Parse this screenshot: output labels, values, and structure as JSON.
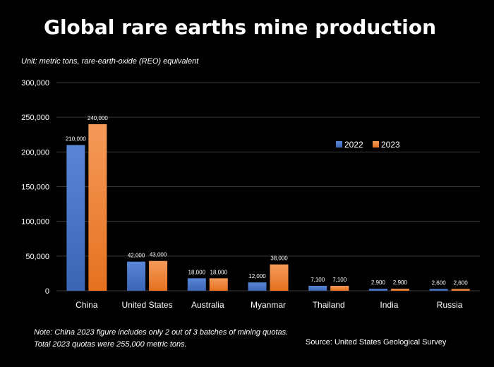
{
  "header": {
    "title": "Global rare earths mine production",
    "subtitle": "Unit: metric tons, rare-earth-oxide (REO) equivalent"
  },
  "footer": {
    "note": "Note: China 2023 figure includes only 2 out of 3 batches of mining quotas. Total 2023 quotas were 255,000 metric tons.",
    "source": "Source: United States Geological Survey"
  },
  "colors": {
    "2022": "#4472C4",
    "2023": "#ED7D31",
    "background": "#000000",
    "text": "#ffffff"
  },
  "chart_data": {
    "type": "bar",
    "categories": [
      "China",
      "United States",
      "Australia",
      "Myanmar",
      "Thailand",
      "India",
      "Russia"
    ],
    "series": [
      {
        "name": "2022",
        "values": [
          210000,
          42000,
          18000,
          12000,
          7100,
          2900,
          2600
        ]
      },
      {
        "name": "2023",
        "values": [
          240000,
          43000,
          18000,
          38000,
          7100,
          2900,
          2600
        ]
      }
    ],
    "data_labels": [
      [
        "210,000",
        "42,000",
        "18,000",
        "12,000",
        "7,100",
        "2,900",
        "2,600"
      ],
      [
        "240,000",
        "43,000",
        "18,000",
        "38,000",
        "7,100",
        "2,900",
        "2,600"
      ]
    ],
    "yticks": [
      0,
      50000,
      100000,
      150000,
      200000,
      250000,
      300000
    ],
    "ytick_labels": [
      "0",
      "50,000",
      "100,000",
      "150,000",
      "200,000",
      "250,000",
      "300,000"
    ],
    "ylim": [
      0,
      300000
    ],
    "grid": true,
    "legend_position": "right"
  }
}
